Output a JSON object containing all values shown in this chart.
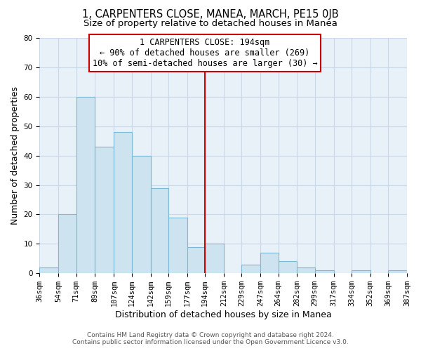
{
  "title": "1, CARPENTERS CLOSE, MANEA, MARCH, PE15 0JB",
  "subtitle": "Size of property relative to detached houses in Manea",
  "xlabel": "Distribution of detached houses by size in Manea",
  "ylabel": "Number of detached properties",
  "bar_edges": [
    36,
    54,
    71,
    89,
    107,
    124,
    142,
    159,
    177,
    194,
    212,
    229,
    247,
    264,
    282,
    299,
    317,
    334,
    352,
    369,
    387
  ],
  "bar_heights": [
    2,
    20,
    60,
    43,
    48,
    40,
    29,
    19,
    9,
    10,
    0,
    3,
    7,
    4,
    2,
    1,
    0,
    1,
    0,
    1
  ],
  "bar_color": "#cde4f0",
  "bar_edge_color": "#7ab8d4",
  "reference_line_x": 194,
  "reference_line_color": "#cc0000",
  "ylim": [
    0,
    80
  ],
  "annotation_line1": "1 CARPENTERS CLOSE: 194sqm",
  "annotation_line2": "← 90% of detached houses are smaller (269)",
  "annotation_line3": "10% of semi-detached houses are larger (30) →",
  "footer_line1": "Contains HM Land Registry data © Crown copyright and database right 2024.",
  "footer_line2": "Contains public sector information licensed under the Open Government Licence v3.0.",
  "tick_labels": [
    "36sqm",
    "54sqm",
    "71sqm",
    "89sqm",
    "107sqm",
    "124sqm",
    "142sqm",
    "159sqm",
    "177sqm",
    "194sqm",
    "212sqm",
    "229sqm",
    "247sqm",
    "264sqm",
    "282sqm",
    "299sqm",
    "317sqm",
    "334sqm",
    "352sqm",
    "369sqm",
    "387sqm"
  ],
  "yticks": [
    0,
    10,
    20,
    30,
    40,
    50,
    60,
    70,
    80
  ],
  "grid_color": "#c8d8e8",
  "bg_color": "#ffffff",
  "plot_bg_color": "#e8f0f8",
  "title_fontsize": 10.5,
  "subtitle_fontsize": 9.5,
  "axis_label_fontsize": 9,
  "tick_fontsize": 7.5,
  "annotation_fontsize": 8.5,
  "footer_fontsize": 6.5
}
